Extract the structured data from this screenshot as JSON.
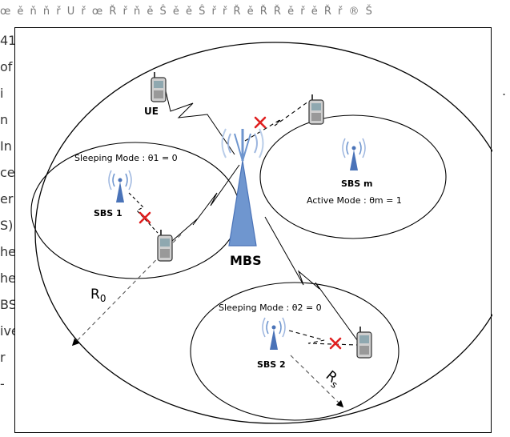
{
  "background_text": {
    "top": "œ ě ň  ň ř  U  ř   œ Ř ř ň  ě Ŝ ě  ě  Ŝ  ř   ř  Ř ě  Ř  Ř ě  ř  ě  Ř ř  ® Š",
    "left_fragments": [
      "41,",
      "of",
      "i",
      "n",
      "In",
      "ce",
      "er",
      "S)",
      "he",
      "he",
      "BS",
      "ive",
      "r",
      "-"
    ]
  },
  "diagram": {
    "mbs_label": "MBS",
    "ue_label": "UE",
    "sbs": [
      {
        "label": "SBS 1",
        "mode_text": "Sleeping Mode : θ1 = 0"
      },
      {
        "label": "SBS m",
        "mode_text": "Active Mode : θm = 1"
      },
      {
        "label": "SBS 2",
        "mode_text": "Sleeping Mode : θ2 = 0"
      }
    ],
    "radius_macro": {
      "main": "R",
      "sub": "0"
    },
    "radius_small": {
      "main": "R",
      "sub": "s"
    }
  },
  "colors": {
    "tower": "#6f96cf",
    "tower_dark": "#4a73b8",
    "block_mark": "#e02020",
    "line": "#000000"
  }
}
